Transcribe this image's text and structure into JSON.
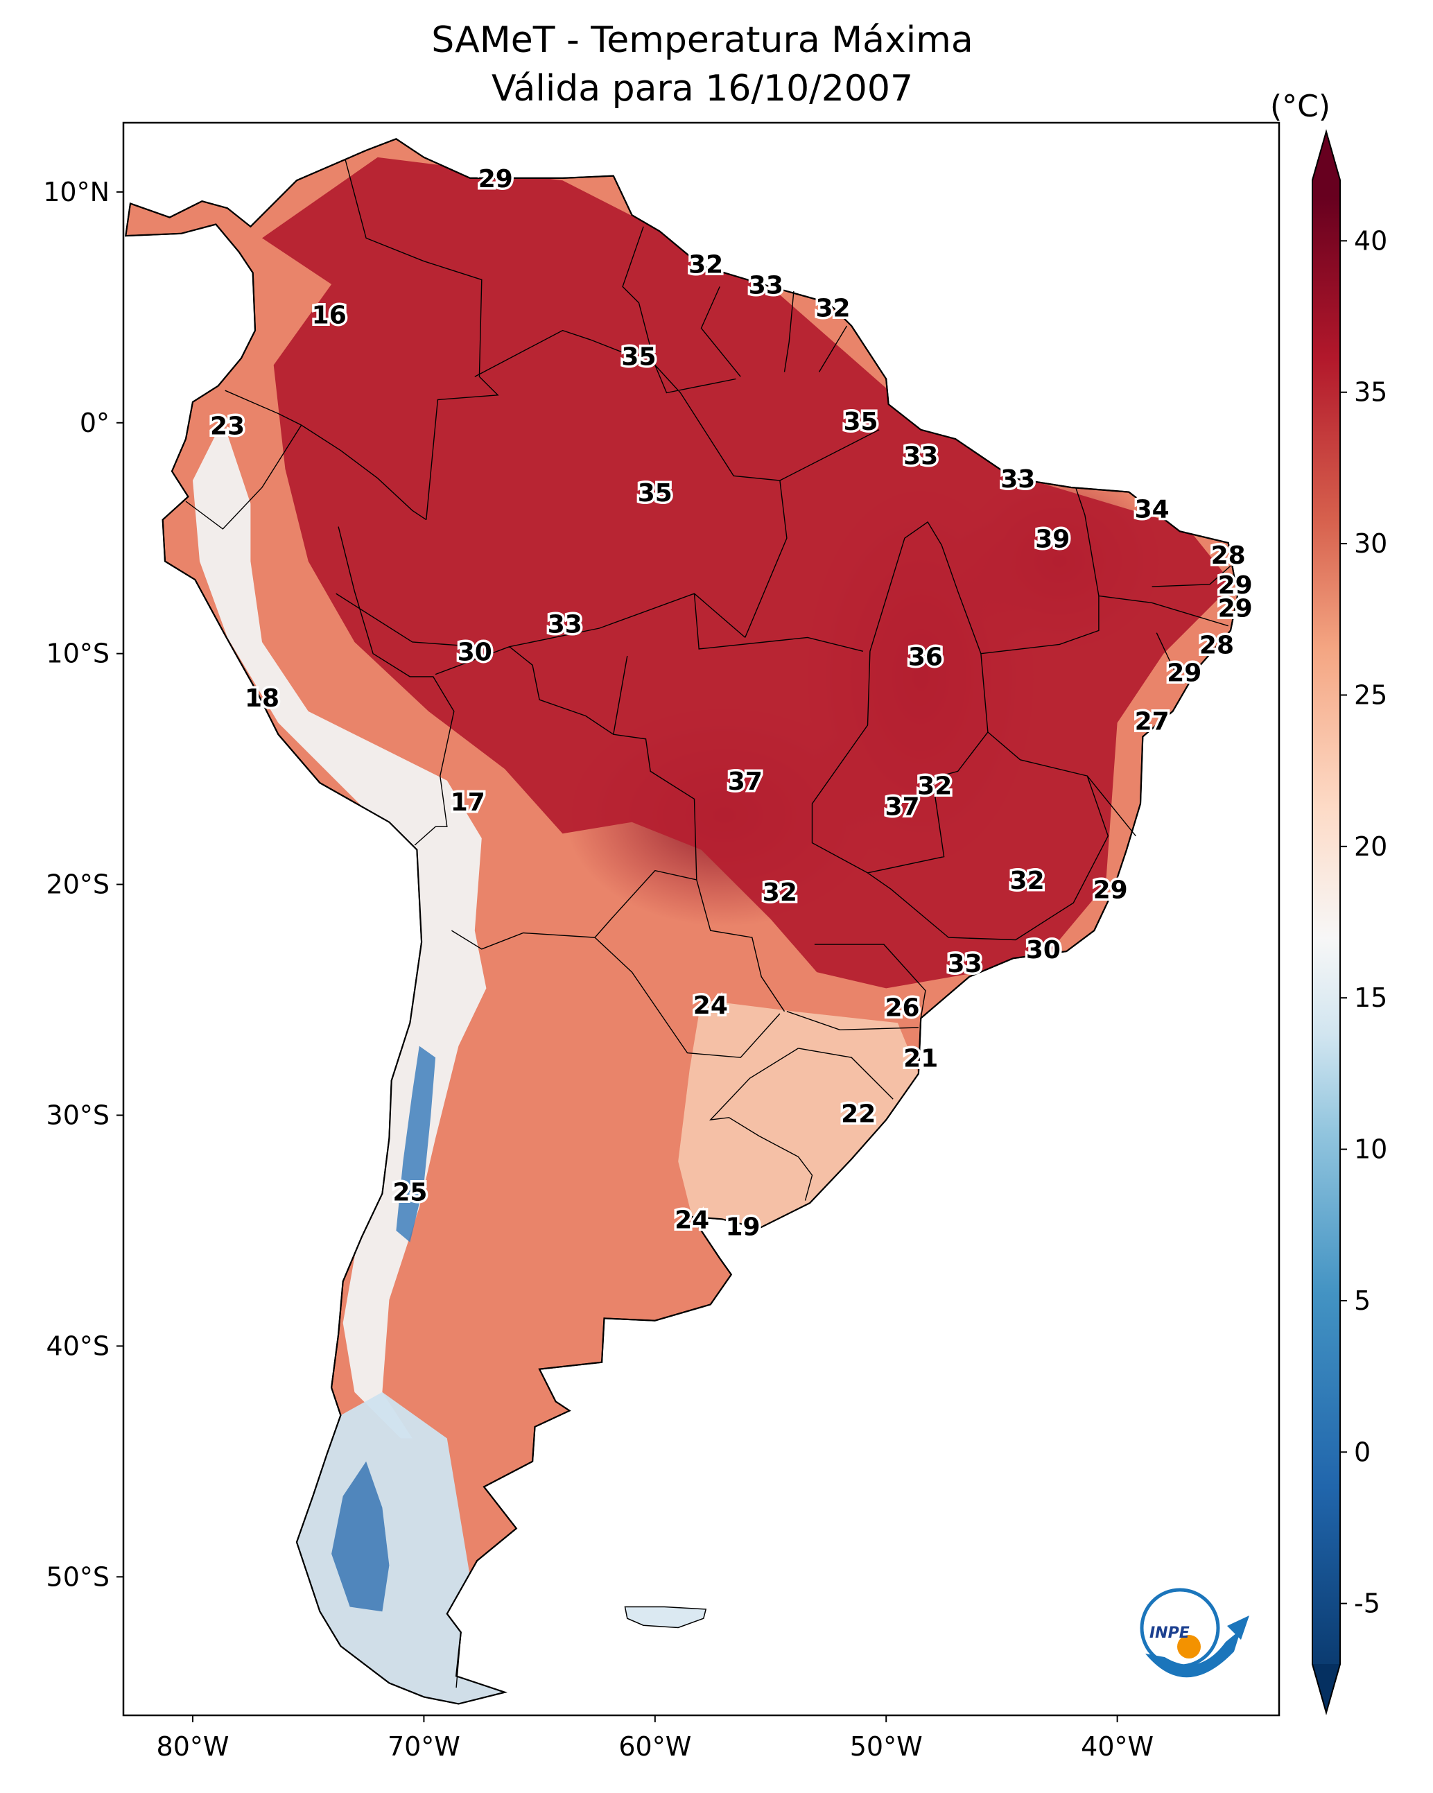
{
  "title": {
    "line1": "SAMeT - Temperatura Máxima",
    "line2": "Válida para 16/10/2007"
  },
  "map": {
    "extent": {
      "lon_min": -83,
      "lon_max": -33,
      "lat_min": -56,
      "lat_max": 13
    },
    "lat_ticks": [
      {
        "value": 10,
        "label": "10°N"
      },
      {
        "value": 0,
        "label": "0°"
      },
      {
        "value": -10,
        "label": "10°S"
      },
      {
        "value": -20,
        "label": "20°S"
      },
      {
        "value": -30,
        "label": "30°S"
      },
      {
        "value": -40,
        "label": "40°S"
      },
      {
        "value": -50,
        "label": "50°S"
      }
    ],
    "lon_ticks": [
      {
        "value": -80,
        "label": "80°W"
      },
      {
        "value": -70,
        "label": "70°W"
      },
      {
        "value": -60,
        "label": "60°W"
      },
      {
        "value": -50,
        "label": "50°W"
      },
      {
        "value": -40,
        "label": "40°W"
      }
    ],
    "capital_labels": [
      {
        "lon": -66.9,
        "lat": 10.5,
        "text": "29"
      },
      {
        "lon": -57.8,
        "lat": 6.8,
        "text": "32"
      },
      {
        "lon": -55.2,
        "lat": 5.9,
        "text": "33"
      },
      {
        "lon": -52.3,
        "lat": 4.9,
        "text": "32"
      },
      {
        "lon": -60.7,
        "lat": 2.8,
        "text": "35"
      },
      {
        "lon": -74.1,
        "lat": 4.6,
        "text": "16"
      },
      {
        "lon": -78.5,
        "lat": -0.2,
        "text": "23"
      },
      {
        "lon": -51.1,
        "lat": 0.0,
        "text": "35"
      },
      {
        "lon": -60.0,
        "lat": -3.1,
        "text": "35"
      },
      {
        "lon": -48.5,
        "lat": -1.5,
        "text": "33"
      },
      {
        "lon": -44.3,
        "lat": -2.5,
        "text": "33"
      },
      {
        "lon": -38.5,
        "lat": -3.8,
        "text": "34"
      },
      {
        "lon": -42.8,
        "lat": -5.1,
        "text": "39"
      },
      {
        "lon": -35.2,
        "lat": -5.8,
        "text": "28"
      },
      {
        "lon": -34.9,
        "lat": -7.1,
        "text": "29"
      },
      {
        "lon": -34.9,
        "lat": -8.1,
        "text": "29"
      },
      {
        "lon": -63.9,
        "lat": -8.8,
        "text": "33"
      },
      {
        "lon": -67.8,
        "lat": -10.0,
        "text": "30"
      },
      {
        "lon": -48.3,
        "lat": -10.2,
        "text": "36"
      },
      {
        "lon": -35.7,
        "lat": -9.7,
        "text": "28"
      },
      {
        "lon": -37.1,
        "lat": -10.9,
        "text": "29"
      },
      {
        "lon": -38.5,
        "lat": -13.0,
        "text": "27"
      },
      {
        "lon": -77.0,
        "lat": -12.0,
        "text": "18"
      },
      {
        "lon": -68.1,
        "lat": -16.5,
        "text": "17"
      },
      {
        "lon": -56.1,
        "lat": -15.6,
        "text": "37"
      },
      {
        "lon": -47.9,
        "lat": -15.8,
        "text": "32"
      },
      {
        "lon": -49.3,
        "lat": -16.7,
        "text": "37"
      },
      {
        "lon": -54.6,
        "lat": -20.4,
        "text": "32"
      },
      {
        "lon": -43.9,
        "lat": -19.9,
        "text": "32"
      },
      {
        "lon": -40.3,
        "lat": -20.3,
        "text": "29"
      },
      {
        "lon": -43.2,
        "lat": -22.9,
        "text": "30"
      },
      {
        "lon": -46.6,
        "lat": -23.5,
        "text": "33"
      },
      {
        "lon": -57.6,
        "lat": -25.3,
        "text": "24"
      },
      {
        "lon": -49.3,
        "lat": -25.4,
        "text": "26"
      },
      {
        "lon": -48.5,
        "lat": -27.6,
        "text": "21"
      },
      {
        "lon": -51.2,
        "lat": -30.0,
        "text": "22"
      },
      {
        "lon": -70.6,
        "lat": -33.4,
        "text": "25"
      },
      {
        "lon": -58.4,
        "lat": -34.6,
        "text": "24"
      },
      {
        "lon": -56.2,
        "lat": -34.9,
        "text": "19"
      }
    ]
  },
  "colorbar": {
    "unit": "(°C)",
    "min": -7,
    "max": 42,
    "extend": "both",
    "ticks": [
      {
        "value": -5,
        "label": "-5"
      },
      {
        "value": 0,
        "label": "0"
      },
      {
        "value": 5,
        "label": "5"
      },
      {
        "value": 10,
        "label": "10"
      },
      {
        "value": 15,
        "label": "15"
      },
      {
        "value": 20,
        "label": "20"
      },
      {
        "value": 25,
        "label": "25"
      },
      {
        "value": 30,
        "label": "30"
      },
      {
        "value": 35,
        "label": "35"
      },
      {
        "value": 40,
        "label": "40"
      }
    ],
    "color_stops": [
      {
        "value": -7,
        "color": "#053061"
      },
      {
        "value": 0,
        "color": "#2166ac"
      },
      {
        "value": 6,
        "color": "#4393c3"
      },
      {
        "value": 11,
        "color": "#92c5de"
      },
      {
        "value": 14,
        "color": "#d1e5f0"
      },
      {
        "value": 17,
        "color": "#f7f7f7"
      },
      {
        "value": 21,
        "color": "#fddbc7"
      },
      {
        "value": 26,
        "color": "#f4a582"
      },
      {
        "value": 30,
        "color": "#d6604d"
      },
      {
        "value": 35,
        "color": "#b2182b"
      },
      {
        "value": 40,
        "color": "#67001f"
      }
    ]
  },
  "logo": {
    "text": "INPE"
  }
}
